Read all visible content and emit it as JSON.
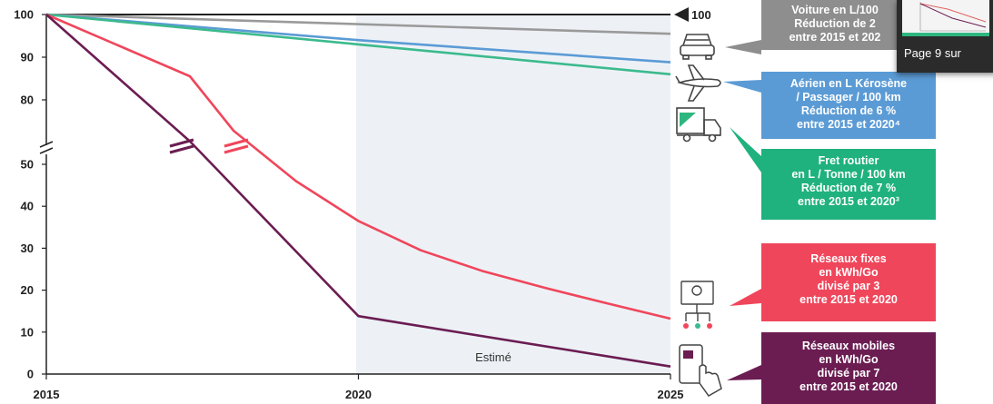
{
  "chart_data": {
    "type": "line",
    "x_range": [
      2015,
      2025
    ],
    "y_ticks": [
      "0",
      "10",
      "20",
      "30",
      "40",
      "50",
      "80",
      "90",
      "100"
    ],
    "x_ticks": [
      "2015",
      "2020",
      "2025"
    ],
    "axis_break": "between 50 and 80 on the y axis",
    "shaded_region": {
      "from": 2020,
      "to": 2025,
      "label": "Estimé"
    },
    "reference_line": {
      "value": 100,
      "label": "100"
    },
    "series": [
      {
        "key": "car",
        "color": "#9a9a9a",
        "points": [
          [
            2015,
            100
          ],
          [
            2025,
            95.5
          ]
        ]
      },
      {
        "key": "air",
        "color": "#5b9bd5",
        "points": [
          [
            2015,
            100
          ],
          [
            2020,
            94
          ],
          [
            2025,
            88.8
          ]
        ]
      },
      {
        "key": "freight",
        "color": "#3cba8d",
        "points": [
          [
            2015,
            100
          ],
          [
            2020,
            93
          ],
          [
            2025,
            86
          ]
        ]
      },
      {
        "key": "fixed",
        "color": "#f0465b",
        "points": [
          [
            2015,
            100
          ],
          [
            2017.3,
            71
          ],
          [
            2018,
            58
          ],
          [
            2019,
            46
          ],
          [
            2020,
            36.5
          ],
          [
            2021,
            29.5
          ],
          [
            2022,
            24.5
          ],
          [
            2023,
            20.5
          ],
          [
            2024,
            16.8
          ],
          [
            2025,
            13.2
          ]
        ]
      },
      {
        "key": "mobile",
        "color": "#6b1d52",
        "points": [
          [
            2015,
            100
          ],
          [
            2017.3,
            55.5
          ],
          [
            2020,
            13.8
          ],
          [
            2025,
            1.8
          ]
        ]
      }
    ],
    "callouts": [
      {
        "key": "car",
        "color": "#8e8e8e",
        "lines": [
          "Voiture en L/100",
          "Réduction de 2",
          "entre 2015 et 202"
        ]
      },
      {
        "key": "air",
        "color": "#5b9bd5",
        "lines": [
          "Aérien en L Kérosène",
          "/ Passager / 100 km",
          "Réduction de 6 %",
          "entre 2015 et 2020⁴"
        ]
      },
      {
        "key": "freight",
        "color": "#1fb27e",
        "lines": [
          "Fret routier",
          "en L / Tonne / 100 km",
          "Réduction de 7 %",
          "entre 2015 et 2020³"
        ]
      },
      {
        "key": "fixed",
        "color": "#f0465b",
        "lines": [
          "Réseaux fixes",
          "en kWh/Go",
          "divisé par 3",
          "entre 2015 et 2020"
        ]
      },
      {
        "key": "mobile",
        "color": "#6b1d52",
        "lines": [
          "Réseaux mobiles",
          "en kWh/Go",
          "divisé par 7",
          "entre 2015 et 2020"
        ]
      }
    ],
    "icons": [
      "car-icon",
      "airplane-icon",
      "truck-icon",
      "fixed-network-icon",
      "smartphone-touch-icon"
    ]
  },
  "overlay": {
    "page_label": "Page 9 sur"
  }
}
